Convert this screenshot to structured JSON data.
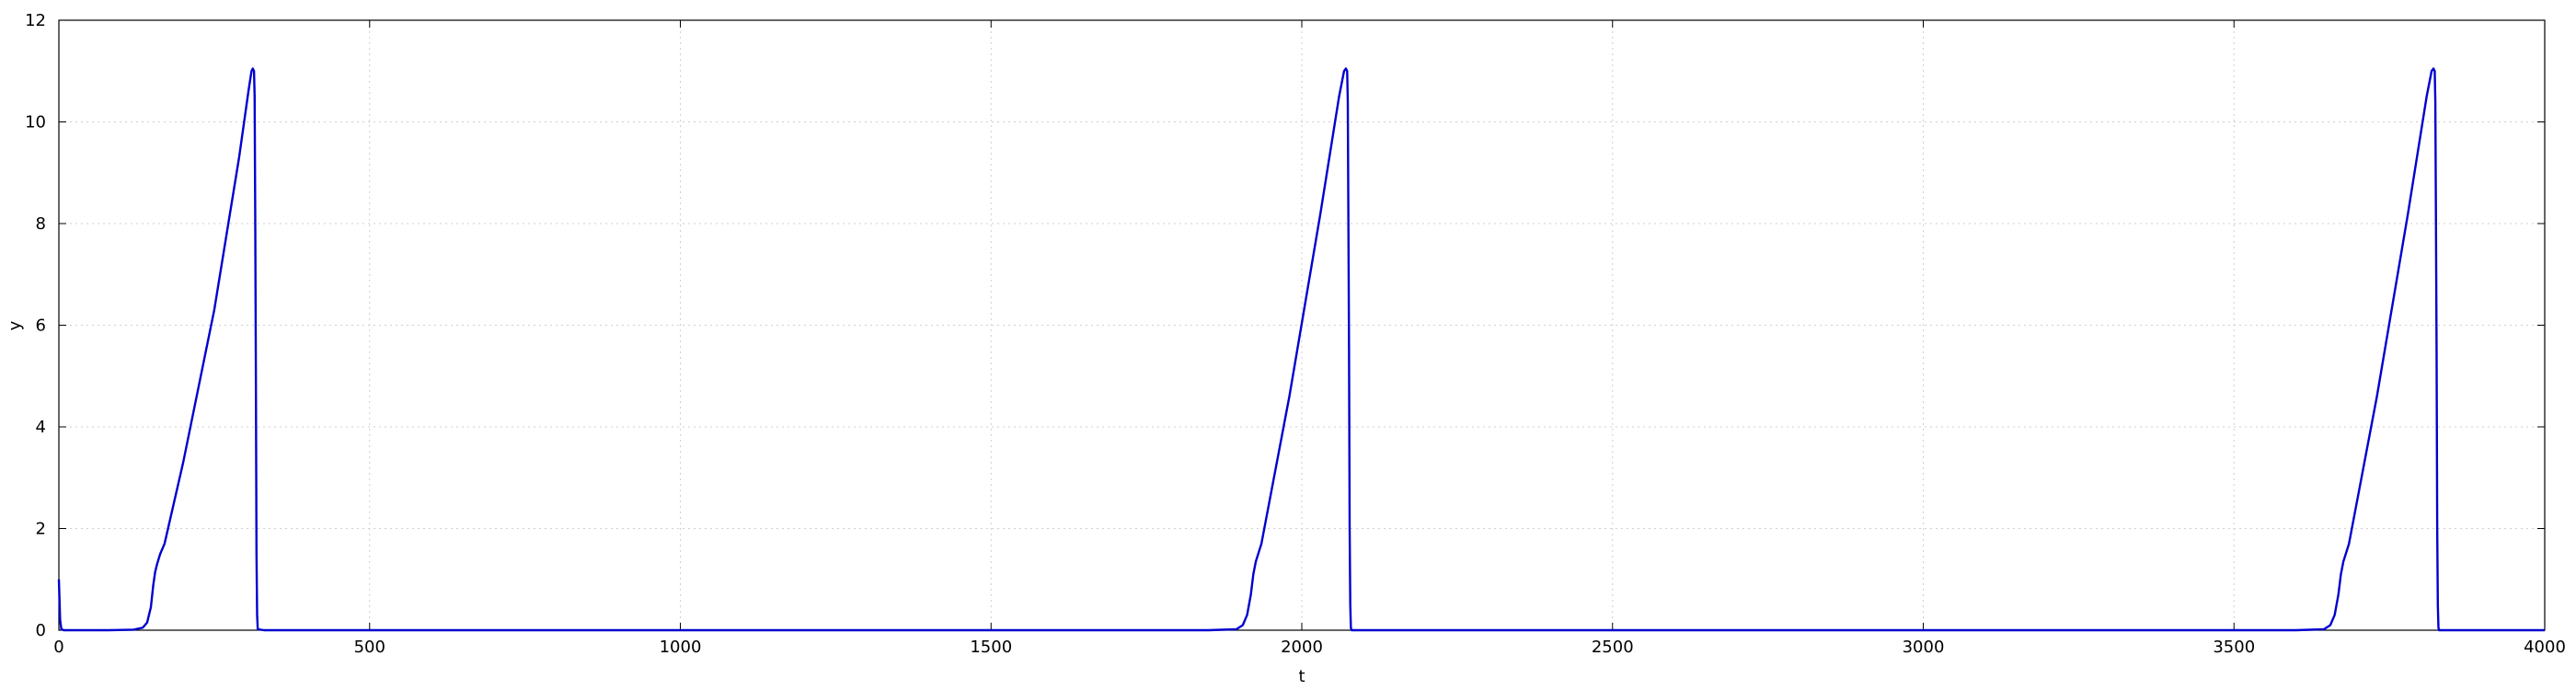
{
  "chart_data": {
    "type": "line",
    "title": "",
    "xlabel": "t",
    "ylabel": "y",
    "xlim": [
      0,
      4000
    ],
    "ylim": [
      0,
      12
    ],
    "xticks": [
      0,
      500,
      1000,
      1500,
      2000,
      2500,
      3000,
      3500,
      4000
    ],
    "yticks": [
      0,
      2,
      4,
      6,
      8,
      10,
      12
    ],
    "grid": true,
    "legend": "none",
    "series": [
      {
        "color": "#0000d0",
        "x": [
          0,
          1,
          2,
          4,
          8,
          30,
          80,
          120,
          135,
          142,
          148,
          152,
          155,
          158,
          163,
          170,
          200,
          250,
          290,
          305,
          310,
          312,
          314,
          315,
          316,
          317,
          318,
          319,
          320,
          330,
          500,
          1000,
          1500,
          1850,
          1895,
          1905,
          1912,
          1918,
          1922,
          1926,
          1935,
          1980,
          2030,
          2060,
          2068,
          2071,
          2073,
          2074,
          2075,
          2076,
          2077,
          2078,
          2079,
          2080,
          2100,
          2500,
          3000,
          3500,
          3600,
          3645,
          3655,
          3662,
          3668,
          3672,
          3676,
          3685,
          3730,
          3780,
          3810,
          3818,
          3821,
          3823,
          3824,
          3825,
          3826,
          3827,
          3828,
          3829,
          3830,
          3850,
          4000
        ],
        "y": [
          1.0,
          0.6,
          0.2,
          0.02,
          0,
          0,
          0,
          0.01,
          0.05,
          0.15,
          0.45,
          0.9,
          1.15,
          1.3,
          1.5,
          1.7,
          3.3,
          6.3,
          9.3,
          10.6,
          11.0,
          11.05,
          11.0,
          10.5,
          8.0,
          5.0,
          1.5,
          0.3,
          0.02,
          0,
          0,
          0,
          0,
          0,
          0.02,
          0.1,
          0.3,
          0.7,
          1.1,
          1.35,
          1.7,
          4.6,
          8.2,
          10.5,
          11.0,
          11.05,
          11.0,
          10.4,
          8.0,
          5.5,
          2.0,
          0.5,
          0.05,
          0,
          0,
          0,
          0,
          0,
          0,
          0.02,
          0.1,
          0.3,
          0.7,
          1.1,
          1.35,
          1.7,
          4.6,
          8.2,
          10.5,
          11.0,
          11.05,
          11.0,
          10.4,
          8.0,
          5.5,
          2.0,
          0.5,
          0.05,
          0,
          0,
          0
        ]
      }
    ]
  }
}
